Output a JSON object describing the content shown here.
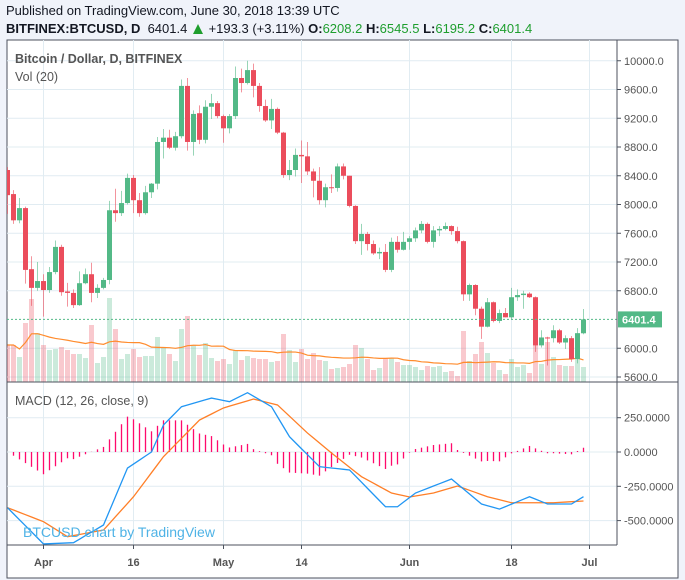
{
  "header": {
    "published": "Published on TradingView.com, June 30, 2018 13:39 UTC",
    "symbol": "BITFINEX:BTCUSD, D",
    "last": "6401.4",
    "change": "+193.3 (+3.11%)",
    "o_label": "O:",
    "o": "6208.2",
    "h_label": "H:",
    "h": "6545.5",
    "l_label": "L:",
    "l": "6195.2",
    "c_label": "C:",
    "c": "6401.4"
  },
  "panes": {
    "price_title": "Bitcoin / Dollar, D, BITFINEX",
    "volume_title": "Vol (20)",
    "macd_title": "MACD (12, 26, close, 9)",
    "watermark": "BTCUSD chart by TradingView",
    "last_price_badge": "6401.4"
  },
  "colors": {
    "up": "#53b987",
    "down": "#eb4d5c",
    "macd": "#2196f3",
    "signal": "#ff7f27",
    "histogram": "#ff0a6c",
    "vol_ma": "#ff8c2e",
    "grid": "#e1ecf2"
  },
  "chart_data": [
    {
      "type": "candlestick",
      "title": "Bitcoin / Dollar, D, BITFINEX",
      "ylim": [
        5500,
        10200
      ],
      "y_ticks": [
        "10000.0",
        "9600.0",
        "9200.0",
        "8800.0",
        "8400.0",
        "8000.0",
        "7600.0",
        "7200.0",
        "6800.0",
        "6000.0",
        "5600.0"
      ],
      "x_ticks": [
        {
          "label": "Apr",
          "date": "2018-04-01"
        },
        {
          "label": "16",
          "date": "2018-04-16"
        },
        {
          "label": "May",
          "date": "2018-05-01"
        },
        {
          "label": "14",
          "date": "2018-05-14"
        },
        {
          "label": "Jun",
          "date": "2018-06-01"
        },
        {
          "label": "18",
          "date": "2018-06-18"
        },
        {
          "label": "Jul",
          "date": "2018-07-01"
        }
      ],
      "grid": true,
      "columns": [
        "date",
        "open",
        "high",
        "low",
        "close",
        "volume"
      ],
      "candles": [
        [
          "2018-03-26",
          8480,
          8520,
          7870,
          8130,
          37
        ],
        [
          "2018-03-27",
          8145,
          8200,
          7730,
          7780,
          37
        ],
        [
          "2018-03-28",
          7780,
          8090,
          7740,
          7950,
          25
        ],
        [
          "2018-03-29",
          7950,
          7970,
          6900,
          7090,
          59
        ],
        [
          "2018-03-30",
          7100,
          7280,
          6590,
          6840,
          83
        ],
        [
          "2018-03-31",
          6840,
          7200,
          6800,
          6935,
          49
        ],
        [
          "2018-04-01",
          6935,
          7030,
          6440,
          6810,
          37
        ],
        [
          "2018-04-02",
          6810,
          7130,
          6770,
          7060,
          32
        ],
        [
          "2018-04-03",
          7060,
          7500,
          7030,
          7410,
          33
        ],
        [
          "2018-04-04",
          7410,
          7440,
          6730,
          6780,
          35
        ],
        [
          "2018-04-05",
          6790,
          6910,
          6580,
          6770,
          32
        ],
        [
          "2018-04-06",
          6770,
          6820,
          6560,
          6600,
          28
        ],
        [
          "2018-04-07",
          6600,
          7070,
          6590,
          6905,
          28
        ],
        [
          "2018-04-08",
          6905,
          7110,
          6890,
          7030,
          24
        ],
        [
          "2018-04-09",
          7030,
          7190,
          6640,
          6770,
          57
        ],
        [
          "2018-04-10",
          6770,
          6890,
          6700,
          6840,
          19
        ],
        [
          "2018-04-11",
          6840,
          6980,
          6820,
          6950,
          25
        ],
        [
          "2018-04-12",
          6950,
          8050,
          6890,
          7920,
          84
        ],
        [
          "2018-04-13",
          7920,
          8220,
          7760,
          7880,
          53
        ],
        [
          "2018-04-14",
          7880,
          8190,
          7840,
          8020,
          23
        ],
        [
          "2018-04-15",
          8020,
          8430,
          8000,
          8370,
          28
        ],
        [
          "2018-04-16",
          8370,
          8410,
          7880,
          8060,
          33
        ],
        [
          "2018-04-17",
          8060,
          8160,
          7830,
          7880,
          25
        ],
        [
          "2018-04-18",
          7880,
          8260,
          7860,
          8170,
          26
        ],
        [
          "2018-04-19",
          8170,
          8300,
          8090,
          8290,
          26
        ],
        [
          "2018-04-20",
          8290,
          8940,
          8210,
          8870,
          45
        ],
        [
          "2018-04-21",
          8870,
          9050,
          8640,
          8930,
          34
        ],
        [
          "2018-04-22",
          8930,
          9040,
          8770,
          8790,
          28
        ],
        [
          "2018-04-23",
          8790,
          9010,
          8750,
          8950,
          21
        ],
        [
          "2018-04-24",
          8950,
          9740,
          8920,
          9650,
          53
        ],
        [
          "2018-04-25",
          9650,
          9760,
          8750,
          8870,
          66
        ],
        [
          "2018-04-26",
          8870,
          9310,
          8680,
          9260,
          37
        ],
        [
          "2018-04-27",
          9270,
          9380,
          8840,
          8900,
          27
        ],
        [
          "2018-04-28",
          8900,
          9450,
          8850,
          9360,
          39
        ],
        [
          "2018-04-29",
          9360,
          9540,
          9190,
          9410,
          24
        ],
        [
          "2018-04-30",
          9410,
          9440,
          9200,
          9230,
          21
        ],
        [
          "2018-05-01",
          9230,
          9250,
          8860,
          9060,
          23
        ],
        [
          "2018-05-02",
          9060,
          9260,
          8990,
          9230,
          18
        ],
        [
          "2018-05-03",
          9230,
          9920,
          9190,
          9760,
          32
        ],
        [
          "2018-05-04",
          9760,
          9890,
          9560,
          9690,
          22
        ],
        [
          "2018-05-05",
          9690,
          10000,
          9670,
          9870,
          26
        ],
        [
          "2018-05-06",
          9870,
          9960,
          9490,
          9650,
          24
        ],
        [
          "2018-05-07",
          9650,
          9690,
          9290,
          9370,
          23
        ],
        [
          "2018-05-08",
          9370,
          9460,
          9150,
          9170,
          23
        ],
        [
          "2018-05-09",
          9170,
          9470,
          9050,
          9330,
          20
        ],
        [
          "2018-05-10",
          9330,
          9350,
          8980,
          9000,
          21
        ],
        [
          "2018-05-11",
          9000,
          9010,
          8370,
          8410,
          48
        ],
        [
          "2018-05-12",
          8410,
          8620,
          8340,
          8480,
          32
        ],
        [
          "2018-05-13",
          8480,
          8780,
          8390,
          8690,
          20
        ],
        [
          "2018-05-14",
          8690,
          8890,
          8300,
          8670,
          33
        ],
        [
          "2018-05-15",
          8670,
          8870,
          8410,
          8460,
          23
        ],
        [
          "2018-05-16",
          8460,
          8500,
          8100,
          8330,
          29
        ],
        [
          "2018-05-17",
          8330,
          8520,
          8000,
          8060,
          22
        ],
        [
          "2018-05-18",
          8060,
          8290,
          7960,
          8240,
          21
        ],
        [
          "2018-05-19",
          8240,
          8420,
          8160,
          8230,
          13
        ],
        [
          "2018-05-20",
          8230,
          8570,
          8180,
          8530,
          14
        ],
        [
          "2018-05-21",
          8530,
          8570,
          8350,
          8400,
          15
        ],
        [
          "2018-05-22",
          8400,
          8400,
          7960,
          7980,
          18
        ],
        [
          "2018-05-23",
          7980,
          7990,
          7450,
          7490,
          37
        ],
        [
          "2018-05-24",
          7490,
          7730,
          7300,
          7590,
          34
        ],
        [
          "2018-05-25",
          7590,
          7620,
          7360,
          7450,
          23
        ],
        [
          "2018-05-26",
          7450,
          7500,
          7300,
          7320,
          12
        ],
        [
          "2018-05-27",
          7320,
          7400,
          7240,
          7340,
          14
        ],
        [
          "2018-05-28",
          7340,
          7450,
          7060,
          7090,
          24
        ],
        [
          "2018-05-29",
          7090,
          7540,
          7060,
          7480,
          24
        ],
        [
          "2018-05-30",
          7480,
          7560,
          7330,
          7370,
          20
        ],
        [
          "2018-05-31",
          7370,
          7620,
          7360,
          7480,
          17
        ],
        [
          "2018-06-01",
          7480,
          7560,
          7370,
          7530,
          17
        ],
        [
          "2018-06-02",
          7530,
          7680,
          7480,
          7640,
          15
        ],
        [
          "2018-06-03",
          7640,
          7770,
          7600,
          7730,
          12
        ],
        [
          "2018-06-04",
          7730,
          7750,
          7460,
          7480,
          16
        ],
        [
          "2018-06-05",
          7480,
          7700,
          7400,
          7640,
          15
        ],
        [
          "2018-06-06",
          7640,
          7700,
          7560,
          7660,
          16
        ],
        [
          "2018-06-07",
          7660,
          7750,
          7640,
          7700,
          10
        ],
        [
          "2018-06-08",
          7700,
          7710,
          7580,
          7630,
          11
        ],
        [
          "2018-06-09",
          7630,
          7690,
          7460,
          7490,
          6
        ],
        [
          "2018-06-10",
          7490,
          7500,
          6660,
          6750,
          51
        ],
        [
          "2018-06-11",
          6750,
          6900,
          6660,
          6880,
          21
        ],
        [
          "2018-06-12",
          6880,
          6890,
          6460,
          6550,
          28
        ],
        [
          "2018-06-13",
          6550,
          6580,
          6130,
          6300,
          40
        ],
        [
          "2018-06-14",
          6300,
          6700,
          6290,
          6640,
          29
        ],
        [
          "2018-06-15",
          6640,
          6650,
          6360,
          6380,
          19
        ],
        [
          "2018-06-16",
          6380,
          6540,
          6350,
          6490,
          12
        ],
        [
          "2018-06-17",
          6490,
          6560,
          6430,
          6430,
          8
        ],
        [
          "2018-06-18",
          6430,
          6840,
          6400,
          6710,
          23
        ],
        [
          "2018-06-19",
          6710,
          6820,
          6660,
          6740,
          15
        ],
        [
          "2018-06-20",
          6740,
          6800,
          6550,
          6760,
          17
        ],
        [
          "2018-06-21",
          6760,
          6780,
          6700,
          6710,
          9
        ],
        [
          "2018-06-22",
          6710,
          6720,
          5950,
          6040,
          50
        ],
        [
          "2018-06-23",
          6040,
          6250,
          6010,
          6150,
          18
        ],
        [
          "2018-06-24",
          6150,
          6160,
          5760,
          6140,
          40
        ],
        [
          "2018-06-25",
          6140,
          6320,
          6080,
          6250,
          25
        ],
        [
          "2018-06-26",
          6250,
          6270,
          6060,
          6080,
          17
        ],
        [
          "2018-06-27",
          6080,
          6180,
          5990,
          6140,
          16
        ],
        [
          "2018-06-28",
          6140,
          6170,
          5810,
          5850,
          16
        ],
        [
          "2018-06-29",
          5850,
          6280,
          5790,
          6210,
          23
        ],
        [
          "2018-06-30",
          6208.2,
          6545.5,
          6195.2,
          6401.4,
          15
        ]
      ],
      "volume_ma_period": 20,
      "last_price": 6401.4
    },
    {
      "type": "line",
      "title": "MACD (12, 26, close, 9)",
      "ylim": [
        -640,
        500
      ],
      "y_ticks": [
        "250.0000",
        "0.0000",
        "-250.0000",
        "-500.0000"
      ],
      "grid": true,
      "series": [
        {
          "name": "MACD",
          "points": [
            [
              "2018-03-26",
              -406
            ],
            [
              "2018-04-01",
              -670
            ],
            [
              "2018-04-06",
              -661
            ],
            [
              "2018-04-11",
              -532
            ],
            [
              "2018-04-15",
              -117
            ],
            [
              "2018-04-19",
              0
            ],
            [
              "2018-04-21",
              197
            ],
            [
              "2018-04-24",
              330
            ],
            [
              "2018-04-29",
              393
            ],
            [
              "2018-05-02",
              367
            ],
            [
              "2018-05-05",
              432
            ],
            [
              "2018-05-09",
              330
            ],
            [
              "2018-05-12",
              111
            ],
            [
              "2018-05-17",
              -107
            ],
            [
              "2018-05-22",
              -131
            ],
            [
              "2018-05-28",
              -399
            ],
            [
              "2018-05-30",
              -399
            ],
            [
              "2018-06-02",
              -299
            ],
            [
              "2018-06-08",
              -197
            ],
            [
              "2018-06-13",
              -379
            ],
            [
              "2018-06-16",
              -416
            ],
            [
              "2018-06-21",
              -326
            ],
            [
              "2018-06-24",
              -379
            ],
            [
              "2018-06-28",
              -379
            ],
            [
              "2018-06-30",
              -326
            ]
          ]
        },
        {
          "name": "Signal",
          "points": [
            [
              "2018-03-26",
              -406
            ],
            [
              "2018-04-01",
              -508
            ],
            [
              "2018-04-05",
              -617
            ],
            [
              "2018-04-11",
              -569
            ],
            [
              "2018-04-16",
              -326
            ],
            [
              "2018-04-21",
              -34
            ],
            [
              "2018-04-27",
              233
            ],
            [
              "2018-05-01",
              321
            ],
            [
              "2018-05-06",
              386
            ],
            [
              "2018-05-10",
              343
            ],
            [
              "2018-05-15",
              138
            ],
            [
              "2018-05-19",
              -7
            ],
            [
              "2018-05-24",
              -180
            ],
            [
              "2018-05-29",
              -299
            ],
            [
              "2018-06-01",
              -328
            ],
            [
              "2018-06-05",
              -299
            ],
            [
              "2018-06-09",
              -248
            ],
            [
              "2018-06-14",
              -326
            ],
            [
              "2018-06-18",
              -370
            ],
            [
              "2018-06-25",
              -370
            ],
            [
              "2018-06-30",
              -357
            ]
          ]
        }
      ]
    }
  ]
}
